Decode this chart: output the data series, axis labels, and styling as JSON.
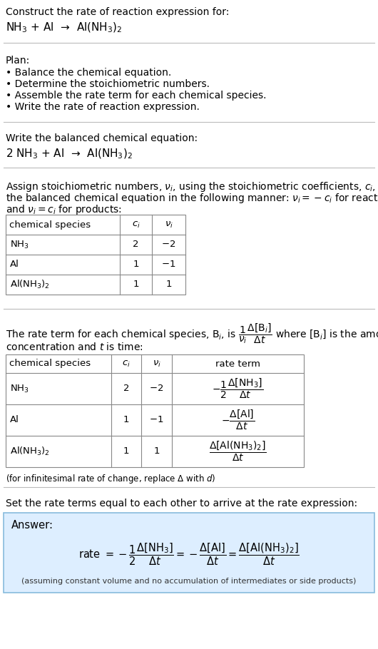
{
  "bg_color": "#ffffff",
  "title_line1": "Construct the rate of reaction expression for:",
  "title_line2": "NH$_3$ + Al  →  Al(NH$_3$)$_2$",
  "plan_header": "Plan:",
  "plan_items": [
    "• Balance the chemical equation.",
    "• Determine the stoichiometric numbers.",
    "• Assemble the rate term for each chemical species.",
    "• Write the rate of reaction expression."
  ],
  "balanced_header": "Write the balanced chemical equation:",
  "balanced_eq": "2 NH$_3$ + Al  →  Al(NH$_3$)$_2$",
  "assign_text1": "Assign stoichiometric numbers, $\\nu_i$, using the stoichiometric coefficients, $c_i$, from",
  "assign_text2": "the balanced chemical equation in the following manner: $\\nu_i = -c_i$ for reactants",
  "assign_text3": "and $\\nu_i = c_i$ for products:",
  "table1_headers": [
    "chemical species",
    "$c_i$",
    "$\\nu_i$"
  ],
  "table1_rows": [
    [
      "NH$_3$",
      "2",
      "$-2$"
    ],
    [
      "Al",
      "1",
      "$-1$"
    ],
    [
      "Al(NH$_3$)$_2$",
      "1",
      "1"
    ]
  ],
  "rate_text1": "The rate term for each chemical species, B$_i$, is $\\dfrac{1}{\\nu_i}\\dfrac{\\Delta[\\mathrm{B}_i]}{\\Delta t}$ where [B$_i$] is the amount",
  "rate_text2": "concentration and $t$ is time:",
  "table2_headers": [
    "chemical species",
    "$c_i$",
    "$\\nu_i$",
    "rate term"
  ],
  "table2_rows": [
    [
      "NH$_3$",
      "2",
      "$-2$",
      "$-\\dfrac{1}{2}\\dfrac{\\Delta[\\mathrm{NH_3}]}{\\Delta t}$"
    ],
    [
      "Al",
      "1",
      "$-1$",
      "$-\\dfrac{\\Delta[\\mathrm{Al}]}{\\Delta t}$"
    ],
    [
      "Al(NH$_3$)$_2$",
      "1",
      "1",
      "$\\dfrac{\\Delta[\\mathrm{Al(NH_3)_2}]}{\\Delta t}$"
    ]
  ],
  "infin_text": "(for infinitesimal rate of change, replace Δ with $d$)",
  "set_text": "Set the rate terms equal to each other to arrive at the rate expression:",
  "answer_label": "Answer:",
  "answer_eq": "rate $= -\\dfrac{1}{2}\\dfrac{\\Delta[\\mathrm{NH_3}]}{\\Delta t} = -\\dfrac{\\Delta[\\mathrm{Al}]}{\\Delta t} = \\dfrac{\\Delta[\\mathrm{Al(NH_3)_2}]}{\\Delta t}$",
  "assuming_text": "(assuming constant volume and no accumulation of intermediates or side products)"
}
